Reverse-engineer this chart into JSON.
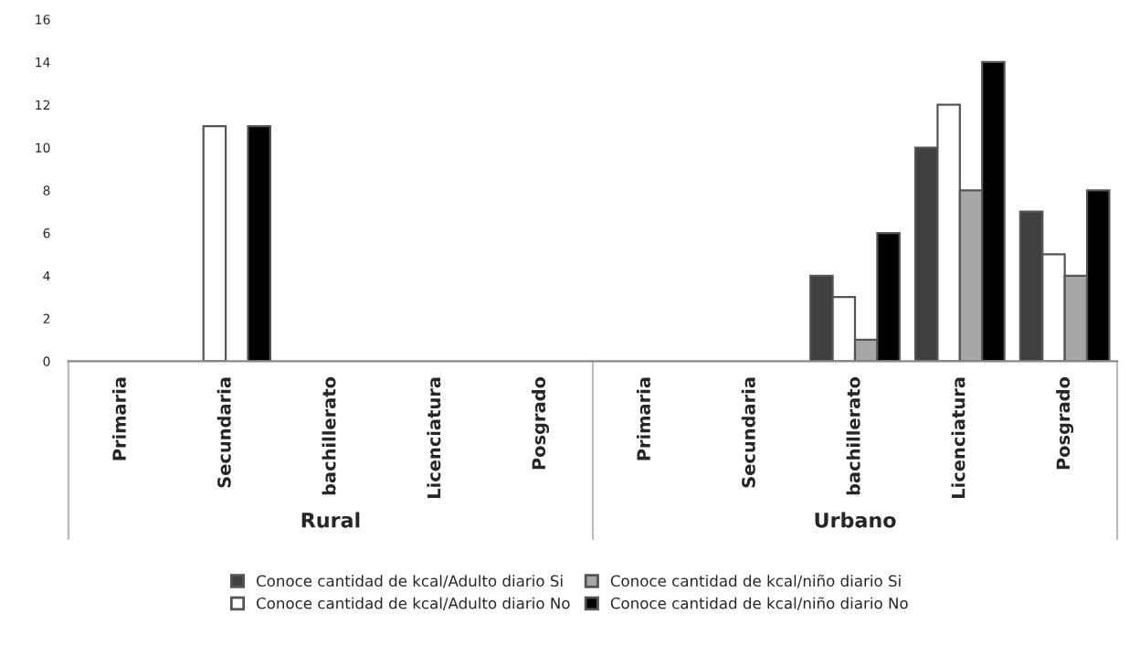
{
  "chart_data": {
    "type": "bar",
    "categories": [
      "Primaria",
      "Secundaria",
      "bachillerato",
      "Licenciatura",
      "Posgrado",
      "Primaria",
      "Secundaria",
      "bachillerato",
      "Licenciatura",
      "Posgrado"
    ],
    "series": [
      {
        "name": "Conoce cantidad de kcal/Adulto diario Si",
        "color": "#404040",
        "values": [
          0,
          0,
          0,
          0,
          0,
          0,
          0,
          4,
          10,
          7
        ]
      },
      {
        "name": "Conoce cantidad de kcal/Adulto diario No",
        "color": "#ffffff",
        "values": [
          0,
          11,
          0,
          0,
          0,
          0,
          0,
          3,
          12,
          5
        ]
      },
      {
        "name": "Conoce cantidad de kcal/niño diario Si",
        "color": "#a6a6a6",
        "values": [
          0,
          0,
          0,
          0,
          0,
          0,
          0,
          1,
          8,
          4
        ]
      },
      {
        "name": "Conoce cantidad de kcal/niño diario No",
        "color": "#000000",
        "values": [
          0,
          11,
          0,
          0,
          0,
          0,
          0,
          6,
          14,
          8
        ]
      }
    ],
    "annotations": [
      "Rural",
      "Urbano"
    ],
    "ylim": [
      0,
      16
    ],
    "yticks": [
      0,
      2,
      4,
      6,
      8,
      10,
      12,
      14,
      16
    ],
    "grid": false,
    "legend": "bottom"
  }
}
